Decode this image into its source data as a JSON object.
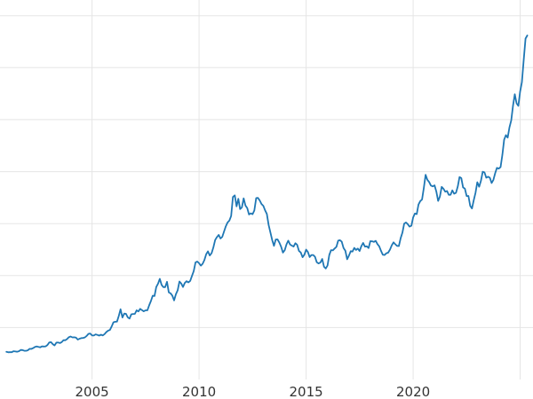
{
  "page": {
    "background": "#ffffff"
  },
  "chart_data": {
    "type": "line",
    "title": "",
    "xlabel": "",
    "ylabel": "",
    "grid": true,
    "legend_position": "none",
    "line_color": "#1f77b4",
    "grid_color": "#e5e5e5",
    "tick_label_color": "#333333",
    "tick_font_size": 15,
    "xlim": [
      2000.7,
      2025.6
    ],
    "ylim": [
      0,
      3600
    ],
    "x_ticks": [
      {
        "value": 2005,
        "label": "2005"
      },
      {
        "value": 2010,
        "label": "2010"
      },
      {
        "value": 2015,
        "label": "2015"
      },
      {
        "value": 2020,
        "label": "2020"
      },
      {
        "value": 2025,
        "label": ""
      }
    ],
    "y_gridlines": [
      500,
      1000,
      1500,
      2000,
      2500,
      3000,
      3500
    ],
    "series": [
      {
        "name": "price",
        "x_start": 2001.0,
        "x_step": 0.0833333,
        "values": [
          266,
          262,
          263,
          263,
          272,
          270,
          267,
          272,
          284,
          283,
          276,
          276,
          281,
          295,
          294,
          302,
          314,
          318,
          313,
          310,
          319,
          317,
          319,
          332,
          356,
          359,
          340,
          328,
          355,
          356,
          351,
          360,
          379,
          378,
          389,
          407,
          414,
          405,
          406,
          403,
          384,
          392,
          398,
          400,
          405,
          420,
          439,
          442,
          424,
          423,
          434,
          429,
          422,
          431,
          424,
          437,
          456,
          470,
          476,
          510,
          550,
          555,
          557,
          611,
          676,
          596,
          634,
          632,
          598,
          586,
          627,
          630,
          631,
          665,
          655,
          680,
          667,
          656,
          665,
          665,
          713,
          755,
          806,
          803,
          890,
          922,
          968,
          910,
          889,
          889,
          940,
          839,
          829,
          807,
          761,
          820,
          858,
          943,
          924,
          890,
          929,
          946,
          934,
          949,
          996,
          1043,
          1127,
          1135,
          1118,
          1095,
          1113,
          1149,
          1205,
          1233,
          1193,
          1216,
          1271,
          1342,
          1370,
          1391,
          1356,
          1373,
          1424,
          1474,
          1511,
          1529,
          1573,
          1756,
          1772,
          1666,
          1739,
          1640,
          1656,
          1743,
          1674,
          1650,
          1588,
          1599,
          1590,
          1626,
          1745,
          1747,
          1722,
          1688,
          1671,
          1628,
          1593,
          1487,
          1414,
          1342,
          1286,
          1347,
          1348,
          1316,
          1276,
          1221,
          1244,
          1300,
          1336,
          1299,
          1288,
          1279,
          1311,
          1296,
          1238,
          1222,
          1176,
          1200,
          1250,
          1227,
          1178,
          1198,
          1198,
          1181,
          1128,
          1117,
          1124,
          1159,
          1086,
          1068,
          1097,
          1199,
          1245,
          1242,
          1260,
          1276,
          1336,
          1340,
          1326,
          1266,
          1238,
          1157,
          1192,
          1234,
          1231,
          1266,
          1246,
          1260,
          1236,
          1283,
          1314,
          1279,
          1281,
          1264,
          1331,
          1330,
          1324,
          1334,
          1303,
          1281,
          1238,
          1201,
          1198,
          1215,
          1220,
          1250,
          1291,
          1320,
          1301,
          1286,
          1284,
          1359,
          1413,
          1500,
          1511,
          1495,
          1471,
          1479,
          1560,
          1597,
          1591,
          1683,
          1716,
          1732,
          1843,
          1969,
          1921,
          1900,
          1866,
          1858,
          1867,
          1808,
          1718,
          1760,
          1853,
          1835,
          1807,
          1814,
          1777,
          1777,
          1820,
          1787,
          1797,
          1856,
          1948,
          1937,
          1848,
          1837,
          1765,
          1766,
          1671,
          1646,
          1725,
          1797,
          1898,
          1855,
          1912,
          1999,
          1992,
          1942,
          1951,
          1942,
          1890,
          1920,
          1984,
          2036,
          2029,
          2044,
          2160,
          2307,
          2351,
          2327,
          2426,
          2493,
          2634,
          2744,
          2657,
          2633,
          2770,
          2860,
          3080,
          3280,
          3310
        ]
      }
    ]
  }
}
